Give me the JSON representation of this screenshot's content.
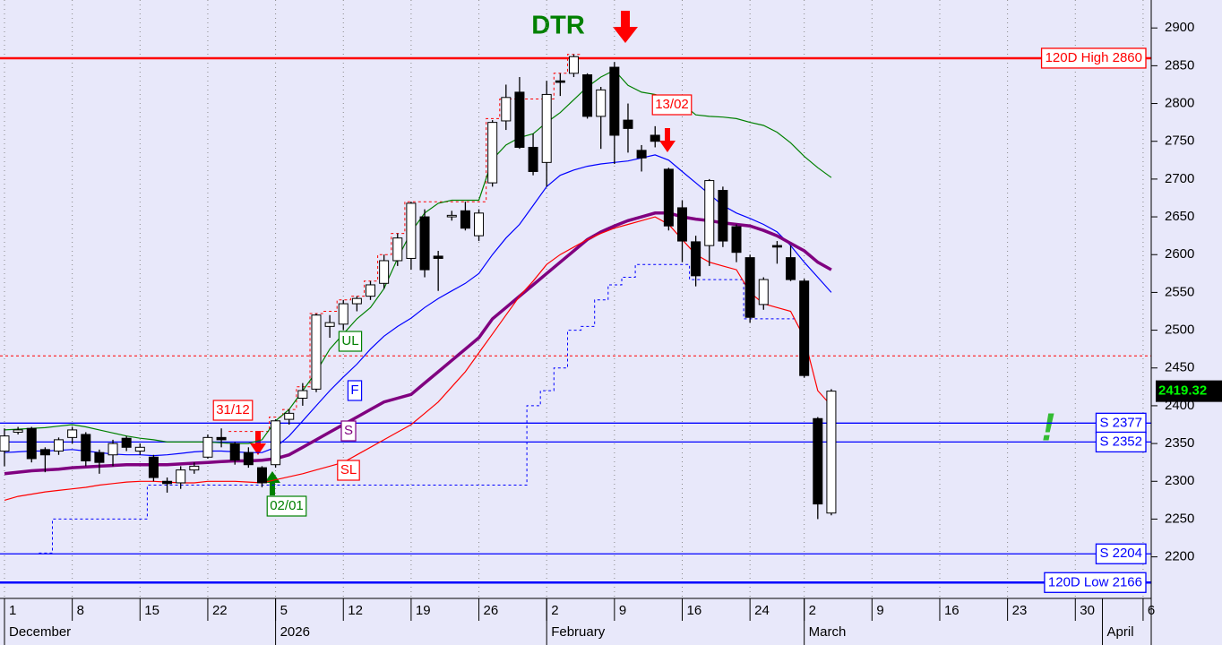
{
  "chart_data": {
    "type": "candlestick",
    "xlim": [
      -0.33,
      84.6
    ],
    "ylim": [
      2145,
      2937
    ],
    "xticks": [
      {
        "value": 0,
        "label": "1"
      },
      {
        "value": 5,
        "label": "8"
      },
      {
        "value": 10,
        "label": "15"
      },
      {
        "value": 15,
        "label": "22"
      },
      {
        "value": 20,
        "label": "5"
      },
      {
        "value": 25,
        "label": "12"
      },
      {
        "value": 30,
        "label": "19"
      },
      {
        "value": 35,
        "label": "26"
      },
      {
        "value": 40,
        "label": "2"
      },
      {
        "value": 45,
        "label": "9"
      },
      {
        "value": 50,
        "label": "16"
      },
      {
        "value": 55,
        "label": "24"
      },
      {
        "value": 59,
        "label": "2"
      },
      {
        "value": 64,
        "label": "9"
      },
      {
        "value": 69,
        "label": "16"
      },
      {
        "value": 74,
        "label": "23"
      },
      {
        "value": 79,
        "label": "30"
      },
      {
        "value": 84,
        "label": "6"
      }
    ],
    "months": [
      {
        "value": 0,
        "label": "December"
      },
      {
        "value": 20,
        "label": "2026"
      },
      {
        "value": 40,
        "label": "February"
      },
      {
        "value": 59,
        "label": "March"
      },
      {
        "value": 81,
        "label": "April"
      }
    ],
    "yticks": [
      2200,
      2250,
      2300,
      2350,
      2400,
      2450,
      2500,
      2550,
      2600,
      2650,
      2700,
      2750,
      2800,
      2850,
      2900
    ],
    "grid": true,
    "ohlc": {
      "open": [
        2340,
        2365,
        2370,
        2342,
        2340,
        2358,
        2362,
        2338,
        2335,
        2357,
        2340,
        2332,
        2300,
        2298,
        2315,
        2332,
        2358,
        2350,
        2338,
        2318,
        2322,
        2382,
        2410,
        2422,
        2505,
        2508,
        2535,
        2545,
        2562,
        2592,
        2595,
        2650,
        2598,
        2650,
        2658,
        2625,
        2695,
        2777,
        2815,
        2742,
        2722,
        2830,
        2840,
        2838,
        2783,
        2848,
        2778,
        2738,
        2758,
        2713,
        2662,
        2617,
        2612,
        2685,
        2637,
        2596,
        2534,
        2612,
        2596,
        2565,
        2383,
        2258
      ],
      "high": [
        2370,
        2372,
        2372,
        2345,
        2358,
        2372,
        2365,
        2342,
        2355,
        2360,
        2350,
        2335,
        2305,
        2320,
        2325,
        2362,
        2370,
        2352,
        2345,
        2320,
        2382,
        2395,
        2430,
        2522,
        2520,
        2540,
        2545,
        2565,
        2600,
        2628,
        2670,
        2660,
        2605,
        2658,
        2670,
        2660,
        2778,
        2825,
        2835,
        2760,
        2830,
        2840,
        2865,
        2840,
        2822,
        2855,
        2800,
        2745,
        2770,
        2715,
        2672,
        2625,
        2700,
        2690,
        2640,
        2600,
        2570,
        2618,
        2612,
        2568,
        2385,
        2422
      ],
      "low": [
        2320,
        2362,
        2325,
        2312,
        2335,
        2350,
        2320,
        2310,
        2320,
        2340,
        2335,
        2300,
        2285,
        2290,
        2310,
        2330,
        2345,
        2322,
        2318,
        2292,
        2318,
        2375,
        2400,
        2418,
        2490,
        2500,
        2525,
        2540,
        2555,
        2585,
        2580,
        2570,
        2552,
        2645,
        2632,
        2618,
        2690,
        2765,
        2740,
        2705,
        2690,
        2810,
        2835,
        2780,
        2740,
        2720,
        2735,
        2710,
        2742,
        2632,
        2590,
        2558,
        2585,
        2610,
        2590,
        2510,
        2527,
        2588,
        2565,
        2437,
        2250,
        2255
      ],
      "close": [
        2360,
        2368,
        2330,
        2335,
        2355,
        2368,
        2327,
        2325,
        2350,
        2345,
        2345,
        2305,
        2297,
        2315,
        2320,
        2358,
        2355,
        2328,
        2322,
        2298,
        2380,
        2390,
        2420,
        2520,
        2510,
        2535,
        2542,
        2560,
        2592,
        2622,
        2668,
        2580,
        2595,
        2652,
        2635,
        2655,
        2775,
        2808,
        2742,
        2710,
        2812,
        2828,
        2862,
        2783,
        2818,
        2758,
        2767,
        2728,
        2750,
        2638,
        2618,
        2572,
        2698,
        2618,
        2603,
        2517,
        2567,
        2610,
        2567,
        2440,
        2270,
        2419.32
      ]
    },
    "lines": [
      {
        "name": "UL",
        "color": "#008000",
        "values": [
          2368,
          2369,
          2370,
          2371,
          2373,
          2375,
          2372,
          2368,
          2364,
          2360,
          2357,
          2355,
          2352,
          2352,
          2352,
          2352,
          2351,
          2350,
          2350,
          2355,
          2380,
          2395,
          2420,
          2445,
          2475,
          2495,
          2515,
          2530,
          2555,
          2595,
          2630,
          2655,
          2668,
          2672,
          2672,
          2672,
          2726,
          2745,
          2755,
          2760,
          2775,
          2788,
          2805,
          2822,
          2835,
          2844,
          2824,
          2815,
          2812,
          2806,
          2800,
          2785,
          2783,
          2782,
          2780,
          2775,
          2771,
          2762,
          2748,
          2730,
          2715,
          2702
        ]
      },
      {
        "name": "F",
        "color": "#0000ff",
        "values": [
          2338,
          2339,
          2340,
          2340,
          2341,
          2342,
          2340,
          2338,
          2336,
          2335,
          2335,
          2334,
          2335,
          2337,
          2339,
          2340,
          2340,
          2339,
          2338,
          2338,
          2345,
          2360,
          2380,
          2400,
          2420,
          2438,
          2455,
          2475,
          2492,
          2505,
          2516,
          2530,
          2542,
          2552,
          2562,
          2575,
          2600,
          2622,
          2640,
          2665,
          2690,
          2705,
          2712,
          2717,
          2720,
          2722,
          2724,
          2728,
          2732,
          2725,
          2710,
          2695,
          2680,
          2665,
          2655,
          2648,
          2640,
          2630,
          2612,
          2590,
          2570,
          2550
        ]
      },
      {
        "name": "S",
        "color": "#800080",
        "values": [
          2310,
          2312,
          2314,
          2315,
          2316,
          2318,
          2319,
          2320,
          2321,
          2322,
          2322,
          2322,
          2322,
          2323,
          2324,
          2325,
          2326,
          2327,
          2327,
          2328,
          2330,
          2335,
          2345,
          2355,
          2365,
          2375,
          2385,
          2395,
          2405,
          2410,
          2415,
          2430,
          2445,
          2460,
          2475,
          2490,
          2515,
          2530,
          2545,
          2560,
          2575,
          2590,
          2605,
          2620,
          2630,
          2638,
          2645,
          2650,
          2655,
          2655,
          2650,
          2647,
          2645,
          2642,
          2640,
          2638,
          2632,
          2625,
          2615,
          2605,
          2590,
          2580
        ]
      },
      {
        "name": "SL",
        "color": "#ff0000",
        "values": [
          2275,
          2280,
          2283,
          2286,
          2288,
          2290,
          2292,
          2295,
          2297,
          2299,
          2300,
          2300,
          2299,
          2298,
          2298,
          2300,
          2300,
          2300,
          2299,
          2298,
          2302,
          2306,
          2310,
          2315,
          2320,
          2325,
          2335,
          2345,
          2355,
          2365,
          2375,
          2390,
          2405,
          2425,
          2445,
          2470,
          2495,
          2520,
          2545,
          2565,
          2587,
          2600,
          2610,
          2620,
          2628,
          2635,
          2640,
          2645,
          2650,
          2640,
          2620,
          2600,
          2590,
          2585,
          2580,
          2550,
          2535,
          2530,
          2525,
          2490,
          2420,
          2400
        ]
      }
    ],
    "stops": [
      {
        "color": "#0000ff",
        "values": [
          null,
          null,
          null,
          2205,
          2250,
          2250,
          2250,
          2250,
          2250,
          2250,
          2250,
          2295,
          2295,
          2295,
          2295,
          2295,
          2295,
          2295,
          2295,
          2295,
          2295,
          2295,
          2295,
          2295,
          2295,
          2295,
          2295,
          2295,
          2295,
          2295,
          2295,
          2295,
          2295,
          2295,
          2295,
          2295,
          2295,
          2295,
          2295,
          2400,
          2420,
          2450,
          2500,
          2505,
          2540,
          2560,
          2570,
          2587,
          2587,
          2587,
          2587,
          2567,
          2567,
          2567,
          2567,
          2515,
          2515,
          2515,
          2515,
          null,
          null,
          null
        ]
      },
      {
        "color": "#ff0000",
        "values": [
          null,
          null,
          null,
          null,
          null,
          null,
          null,
          null,
          null,
          null,
          null,
          null,
          null,
          null,
          null,
          null,
          null,
          2366,
          2366,
          2366,
          2385,
          2395,
          2425,
          2522,
          2525,
          2540,
          2545,
          2565,
          2600,
          2628,
          2670,
          2670,
          2670,
          2670,
          2670,
          2670,
          2780,
          2806,
          2806,
          2806,
          2806,
          2840,
          2865,
          null,
          null,
          null,
          null,
          null,
          null,
          null,
          null,
          null,
          null,
          null,
          null,
          null,
          null,
          null,
          null,
          null,
          null,
          null
        ]
      }
    ],
    "levels": [
      {
        "value": 2860,
        "label": "120D High 2860",
        "color": "#ff0000"
      },
      {
        "value": 2377,
        "label": "S 2377",
        "color": "#0000ff"
      },
      {
        "value": 2352,
        "label": "S 2352",
        "color": "#0000ff"
      },
      {
        "value": 2204,
        "label": "S 2204",
        "color": "#0000ff"
      },
      {
        "value": 2166,
        "label": "120D Low 2166",
        "color": "#0000ff"
      }
    ],
    "dashed_levels": [
      {
        "value": 2466,
        "color": "#ff0000"
      }
    ],
    "last_price": 2419.32,
    "annotations": {
      "title": "DTR",
      "markers": [
        "31/12",
        "02/01",
        "13/02"
      ],
      "signal": "!"
    }
  }
}
